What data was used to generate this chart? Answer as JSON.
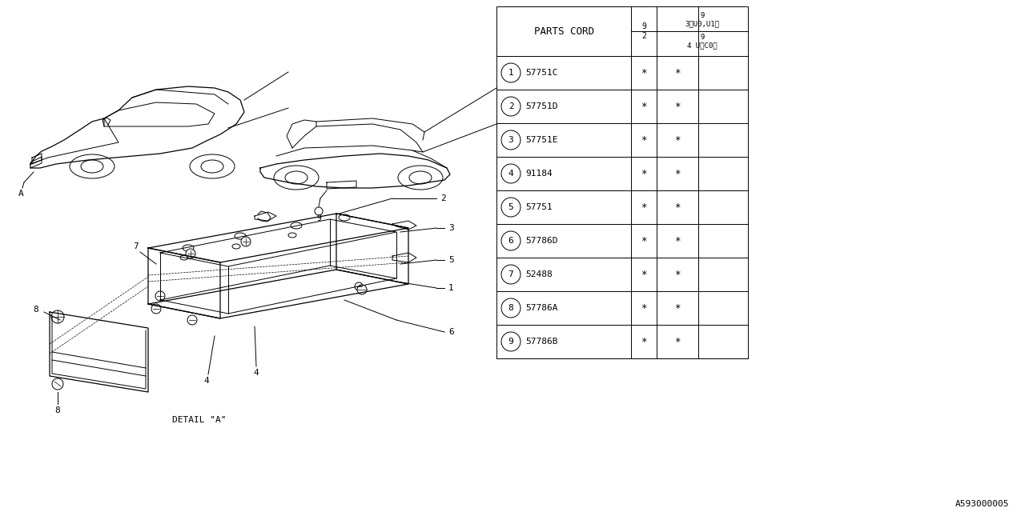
{
  "bg_color": "#ffffff",
  "fig_width": 12.8,
  "fig_height": 6.4,
  "table": {
    "title": "PARTS CORD",
    "rows": [
      [
        "1",
        "57751C"
      ],
      [
        "2",
        "57751D"
      ],
      [
        "3",
        "57751E"
      ],
      [
        "4",
        "91184"
      ],
      [
        "5",
        "57751"
      ],
      [
        "6",
        "57786D"
      ],
      [
        "7",
        "52488"
      ],
      [
        "8",
        "57786A"
      ],
      [
        "9",
        "57786B"
      ]
    ]
  },
  "footer_code": "A593000005",
  "detail_label": "DETAIL \"A\""
}
